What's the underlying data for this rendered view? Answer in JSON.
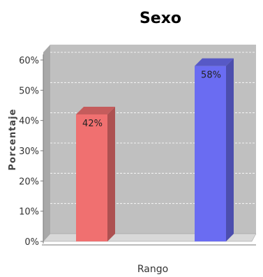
{
  "chart_data": {
    "type": "bar",
    "title": "Sexo",
    "ylabel": "Porcentaje",
    "xlabel": "Rango",
    "ylim": [
      0,
      60
    ],
    "yticks": [
      0,
      10,
      20,
      30,
      40,
      50,
      60
    ],
    "tick_suffix": "%",
    "categories": [
      "",
      ""
    ],
    "values": [
      42,
      58
    ],
    "data_labels": [
      "42%",
      "58%"
    ],
    "bar_colors": [
      "#f07070",
      "#6a6cf2"
    ],
    "background": "#c0c0c0",
    "grid": true
  }
}
